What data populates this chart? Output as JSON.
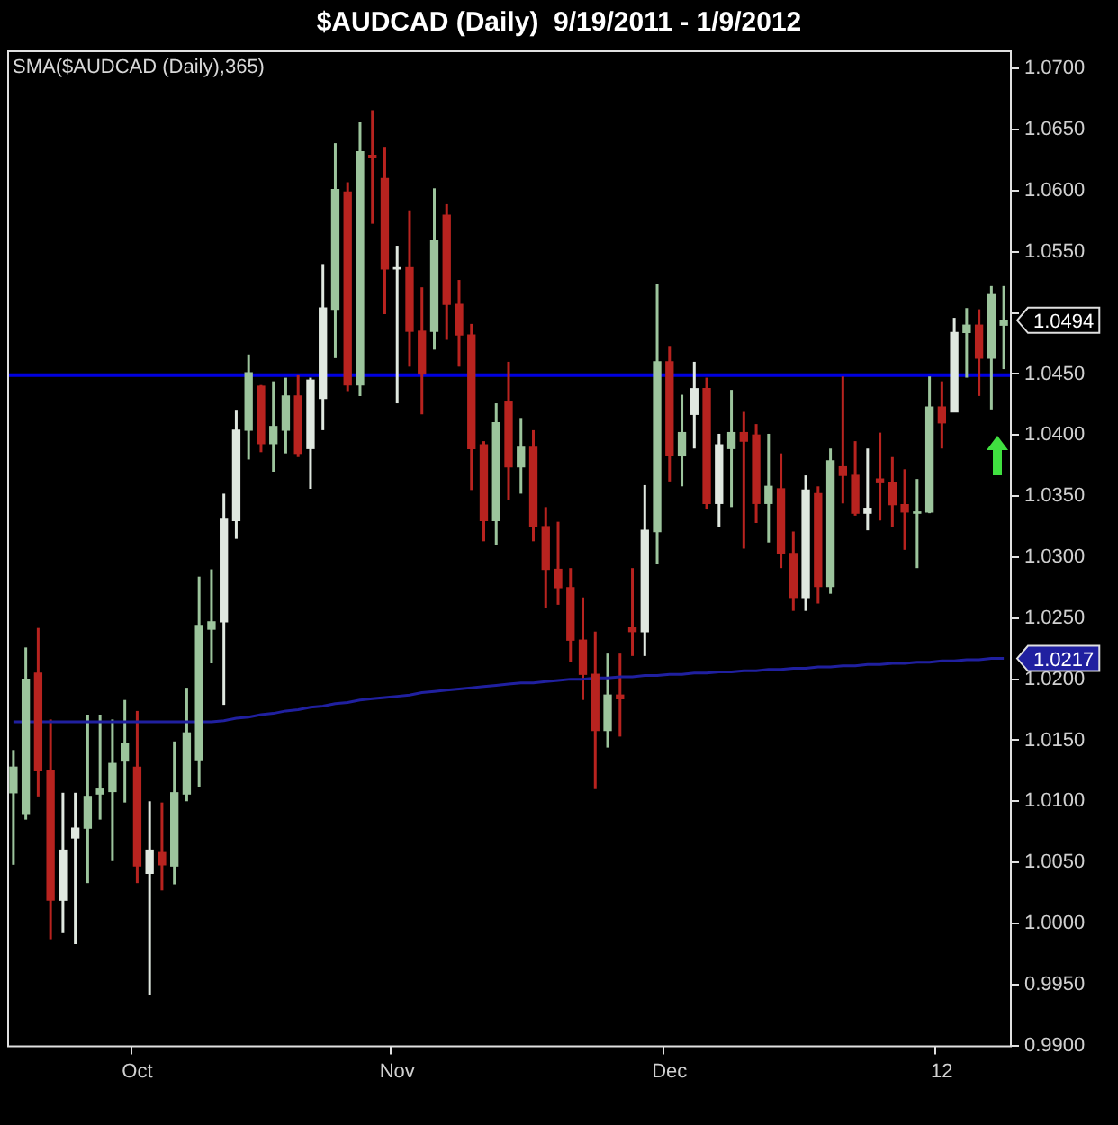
{
  "chart_data": {
    "type": "candlestick",
    "title": "$AUDCAD (Daily)  9/19/2011 - 1/9/2012",
    "categories": [
      null,
      null,
      null,
      null,
      null,
      null,
      null,
      null,
      null,
      null,
      "Oct",
      null,
      null,
      null,
      null,
      null,
      null,
      null,
      null,
      null,
      null,
      null,
      null,
      null,
      null,
      null,
      null,
      null,
      null,
      null,
      null,
      "Nov",
      null,
      null,
      null,
      null,
      null,
      null,
      null,
      null,
      null,
      null,
      null,
      null,
      null,
      null,
      null,
      null,
      null,
      null,
      null,
      null,
      null,
      "Dec",
      null,
      null,
      null,
      null,
      null,
      null,
      null,
      null,
      null,
      null,
      null,
      null,
      null,
      null,
      null,
      null,
      null,
      null,
      null,
      null,
      null,
      "12",
      null,
      null,
      null,
      null,
      null
    ],
    "series": [
      {
        "ohlc": [
          [
            1.0107,
            1.0142,
            1.0048,
            1.0128
          ],
          [
            1.009,
            1.0226,
            1.0085,
            1.02
          ],
          [
            1.0205,
            1.0242,
            1.0104,
            1.0125
          ],
          [
            1.0125,
            1.0167,
            0.9987,
            1.0019
          ],
          [
            1.0019,
            1.0107,
            0.9992,
            1.006
          ],
          [
            1.007,
            1.0107,
            0.9983,
            1.0078
          ],
          [
            1.0078,
            1.0171,
            1.0033,
            1.0104
          ],
          [
            1.0106,
            1.0171,
            1.0085,
            1.011
          ],
          [
            1.0108,
            1.0167,
            1.0051,
            1.0131
          ],
          [
            1.0133,
            1.0183,
            1.0099,
            1.0147
          ],
          [
            1.0128,
            1.0174,
            1.0033,
            1.0047
          ],
          [
            1.0041,
            1.01,
            0.9941,
            1.006
          ],
          [
            1.0058,
            1.0099,
            1.0027,
            1.0048
          ],
          [
            1.0047,
            1.0149,
            1.0032,
            1.0107
          ],
          [
            1.0106,
            1.0193,
            1.01,
            1.0156
          ],
          [
            1.0134,
            1.0284,
            1.0112,
            1.0244
          ],
          [
            1.0241,
            1.029,
            1.0213,
            1.0247
          ],
          [
            1.0247,
            1.0352,
            1.0179,
            1.0331
          ],
          [
            1.033,
            1.042,
            1.0315,
            1.0404
          ],
          [
            1.0404,
            1.0466,
            1.038,
            1.0451
          ],
          [
            1.044,
            1.0441,
            1.0386,
            1.0393
          ],
          [
            1.0393,
            1.0444,
            1.037,
            1.0407
          ],
          [
            1.0404,
            1.0447,
            1.0385,
            1.0432
          ],
          [
            1.0432,
            1.0449,
            1.0382,
            1.0385
          ],
          [
            1.0389,
            1.0447,
            1.0356,
            1.0445
          ],
          [
            1.043,
            1.054,
            1.0404,
            1.0504
          ],
          [
            1.0503,
            1.0639,
            1.0463,
            1.0601
          ],
          [
            1.0599,
            1.0607,
            1.0436,
            1.0441
          ],
          [
            1.0441,
            1.0656,
            1.0432,
            1.0632
          ],
          [
            1.0629,
            1.0666,
            1.0573,
            1.0627
          ],
          [
            1.061,
            1.0636,
            1.0499,
            1.0536
          ],
          [
            1.0536,
            1.0555,
            1.0426,
            1.0537
          ],
          [
            1.0537,
            1.0584,
            1.0456,
            1.0485
          ],
          [
            1.0485,
            1.0521,
            1.0417,
            1.045
          ],
          [
            1.0485,
            1.0602,
            1.047,
            1.0559
          ],
          [
            1.058,
            1.0589,
            1.0478,
            1.0507
          ],
          [
            1.0507,
            1.0527,
            1.0456,
            1.0482
          ],
          [
            1.0482,
            1.0491,
            1.0355,
            1.0389
          ],
          [
            1.0392,
            1.0395,
            1.0313,
            1.033
          ],
          [
            1.033,
            1.0426,
            1.031,
            1.041
          ],
          [
            1.0427,
            1.046,
            1.0347,
            1.0374
          ],
          [
            1.0374,
            1.0414,
            1.0352,
            1.039
          ],
          [
            1.039,
            1.0404,
            1.0313,
            1.0325
          ],
          [
            1.0325,
            1.0341,
            1.0258,
            1.029
          ],
          [
            1.029,
            1.0329,
            1.0261,
            1.0275
          ],
          [
            1.0275,
            1.0291,
            1.0214,
            1.0232
          ],
          [
            1.0232,
            1.0267,
            1.0183,
            1.0204
          ],
          [
            1.0204,
            1.0239,
            1.011,
            1.0158
          ],
          [
            1.0158,
            1.0221,
            1.0144,
            1.0187
          ],
          [
            1.0187,
            1.0221,
            1.0153,
            1.0184
          ],
          [
            1.0242,
            1.0291,
            1.0219,
            1.0239
          ],
          [
            1.0239,
            1.0359,
            1.0219,
            1.0322
          ],
          [
            1.0321,
            1.0524,
            1.0294,
            1.046
          ],
          [
            1.046,
            1.0473,
            1.0362,
            1.0383
          ],
          [
            1.0383,
            1.0433,
            1.0358,
            1.0402
          ],
          [
            1.0417,
            1.046,
            1.0389,
            1.0438
          ],
          [
            1.0438,
            1.0447,
            1.0339,
            1.0344
          ],
          [
            1.0344,
            1.0401,
            1.0325,
            1.0392
          ],
          [
            1.0389,
            1.0437,
            1.0341,
            1.0402
          ],
          [
            1.0402,
            1.0419,
            1.0307,
            1.0395
          ],
          [
            1.04,
            1.0409,
            1.0328,
            1.0344
          ],
          [
            1.0344,
            1.0401,
            1.0312,
            1.0358
          ],
          [
            1.0356,
            1.0385,
            1.0291,
            1.0303
          ],
          [
            1.0303,
            1.0321,
            1.0256,
            1.0267
          ],
          [
            1.0267,
            1.0367,
            1.0256,
            1.0355
          ],
          [
            1.0352,
            1.0358,
            1.0262,
            1.0276
          ],
          [
            1.0276,
            1.0389,
            1.027,
            1.0379
          ],
          [
            1.0374,
            1.0448,
            1.0344,
            1.0367
          ],
          [
            1.0367,
            1.0395,
            1.0334,
            1.0336
          ],
          [
            1.0336,
            1.0389,
            1.0322,
            1.034
          ],
          [
            1.0364,
            1.0402,
            1.033,
            1.0361
          ],
          [
            1.0361,
            1.0382,
            1.0325,
            1.0343
          ],
          [
            1.0343,
            1.0372,
            1.0306,
            1.0337
          ],
          [
            1.0336,
            1.0364,
            1.0291,
            1.0337
          ],
          [
            1.0337,
            1.0448,
            1.0336,
            1.0423
          ],
          [
            1.0423,
            1.0444,
            1.0389,
            1.041
          ],
          [
            1.0419,
            1.0496,
            1.0419,
            1.0484
          ],
          [
            1.0484,
            1.0504,
            1.0447,
            1.049
          ],
          [
            1.049,
            1.0503,
            1.0432,
            1.0463
          ],
          [
            1.0463,
            1.0522,
            1.0421,
            1.0515
          ],
          [
            1.049,
            1.0522,
            1.0454,
            1.0494
          ]
        ],
        "colors": [
          "#9cc49c",
          "#9cc49c",
          "#b8231f",
          "#b8231f",
          "#e0e8e0",
          "#e0e8e0",
          "#9cc49c",
          "#9cc49c",
          "#9cc49c",
          "#9cc49c",
          "#b8231f",
          "#e0e8e0",
          "#b8231f",
          "#9cc49c",
          "#9cc49c",
          "#9cc49c",
          "#9cc49c",
          "#e0e8e0",
          "#e0e8e0",
          "#9cc49c",
          "#b8231f",
          "#9cc49c",
          "#9cc49c",
          "#b8231f",
          "#e0e8e0",
          "#e0e8e0",
          "#9cc49c",
          "#b8231f",
          "#9cc49c",
          "#b8231f",
          "#b8231f",
          "#e0e8e0",
          "#b8231f",
          "#b8231f",
          "#9cc49c",
          "#b8231f",
          "#b8231f",
          "#b8231f",
          "#b8231f",
          "#9cc49c",
          "#b8231f",
          "#9cc49c",
          "#b8231f",
          "#b8231f",
          "#b8231f",
          "#b8231f",
          "#b8231f",
          "#b8231f",
          "#9cc49c",
          "#b8231f",
          "#b8231f",
          "#e0e8e0",
          "#9cc49c",
          "#b8231f",
          "#9cc49c",
          "#e0e8e0",
          "#b8231f",
          "#e0e8e0",
          "#9cc49c",
          "#b8231f",
          "#b8231f",
          "#9cc49c",
          "#b8231f",
          "#b8231f",
          "#e0e8e0",
          "#b8231f",
          "#9cc49c",
          "#b8231f",
          "#b8231f",
          "#e0e8e0",
          "#b8231f",
          "#b8231f",
          "#b8231f",
          "#9cc49c",
          "#9cc49c",
          "#b8231f",
          "#e0e8e0",
          "#9cc49c",
          "#b8231f",
          "#9cc49c",
          "#9cc49c"
        ]
      },
      {
        "type": "line",
        "name": "SMA($AUDCAD (Daily),365)",
        "color": "#2020a0",
        "values": [
          1.0165,
          1.0165,
          1.0165,
          1.0165,
          1.0165,
          1.0165,
          1.0165,
          1.0165,
          1.0165,
          1.0165,
          1.0165,
          1.0165,
          1.0165,
          1.0165,
          1.0165,
          1.0165,
          1.0165,
          1.0166,
          1.0168,
          1.0169,
          1.0171,
          1.0172,
          1.0174,
          1.0175,
          1.0177,
          1.0178,
          1.018,
          1.0181,
          1.0183,
          1.0184,
          1.0185,
          1.0186,
          1.0187,
          1.0189,
          1.019,
          1.0191,
          1.0192,
          1.0193,
          1.0194,
          1.0195,
          1.0196,
          1.0197,
          1.0197,
          1.0198,
          1.0199,
          1.02,
          1.02,
          1.0201,
          1.0201,
          1.0202,
          1.0202,
          1.0203,
          1.0203,
          1.0204,
          1.0204,
          1.0205,
          1.0205,
          1.0206,
          1.0206,
          1.0207,
          1.0207,
          1.0208,
          1.0208,
          1.0209,
          1.0209,
          1.021,
          1.021,
          1.0211,
          1.0211,
          1.0212,
          1.0212,
          1.0213,
          1.0213,
          1.0214,
          1.0214,
          1.0215,
          1.0215,
          1.0216,
          1.0216,
          1.0217,
          1.0217
        ]
      }
    ],
    "ylim": [
      0.99,
      1.0715
    ],
    "yticks": [
      {
        "value": 0.99,
        "label": "0.9900"
      },
      {
        "value": 0.995,
        "label": "0.9950"
      },
      {
        "value": 1.0,
        "label": "1.0000"
      },
      {
        "value": 1.005,
        "label": "1.0050"
      },
      {
        "value": 1.01,
        "label": "1.0100"
      },
      {
        "value": 1.015,
        "label": "1.0150"
      },
      {
        "value": 1.02,
        "label": "1.0200"
      },
      {
        "value": 1.025,
        "label": "1.0250"
      },
      {
        "value": 1.03,
        "label": "1.0300"
      },
      {
        "value": 1.035,
        "label": "1.0350"
      },
      {
        "value": 1.04,
        "label": "1.0400"
      },
      {
        "value": 1.045,
        "label": "1.0450"
      },
      {
        "value": 1.05,
        "label": null
      },
      {
        "value": 1.055,
        "label": "1.0550"
      },
      {
        "value": 1.06,
        "label": "1.0600"
      },
      {
        "value": 1.065,
        "label": "1.0650"
      },
      {
        "value": 1.07,
        "label": "1.0700"
      }
    ],
    "ref_lines": [
      {
        "axis": "y",
        "value": 1.0449,
        "color": "#0000e0"
      }
    ],
    "annotations": [
      "1.0494",
      "1.0217"
    ],
    "grid": false,
    "legend": "top left",
    "marker": "none"
  }
}
